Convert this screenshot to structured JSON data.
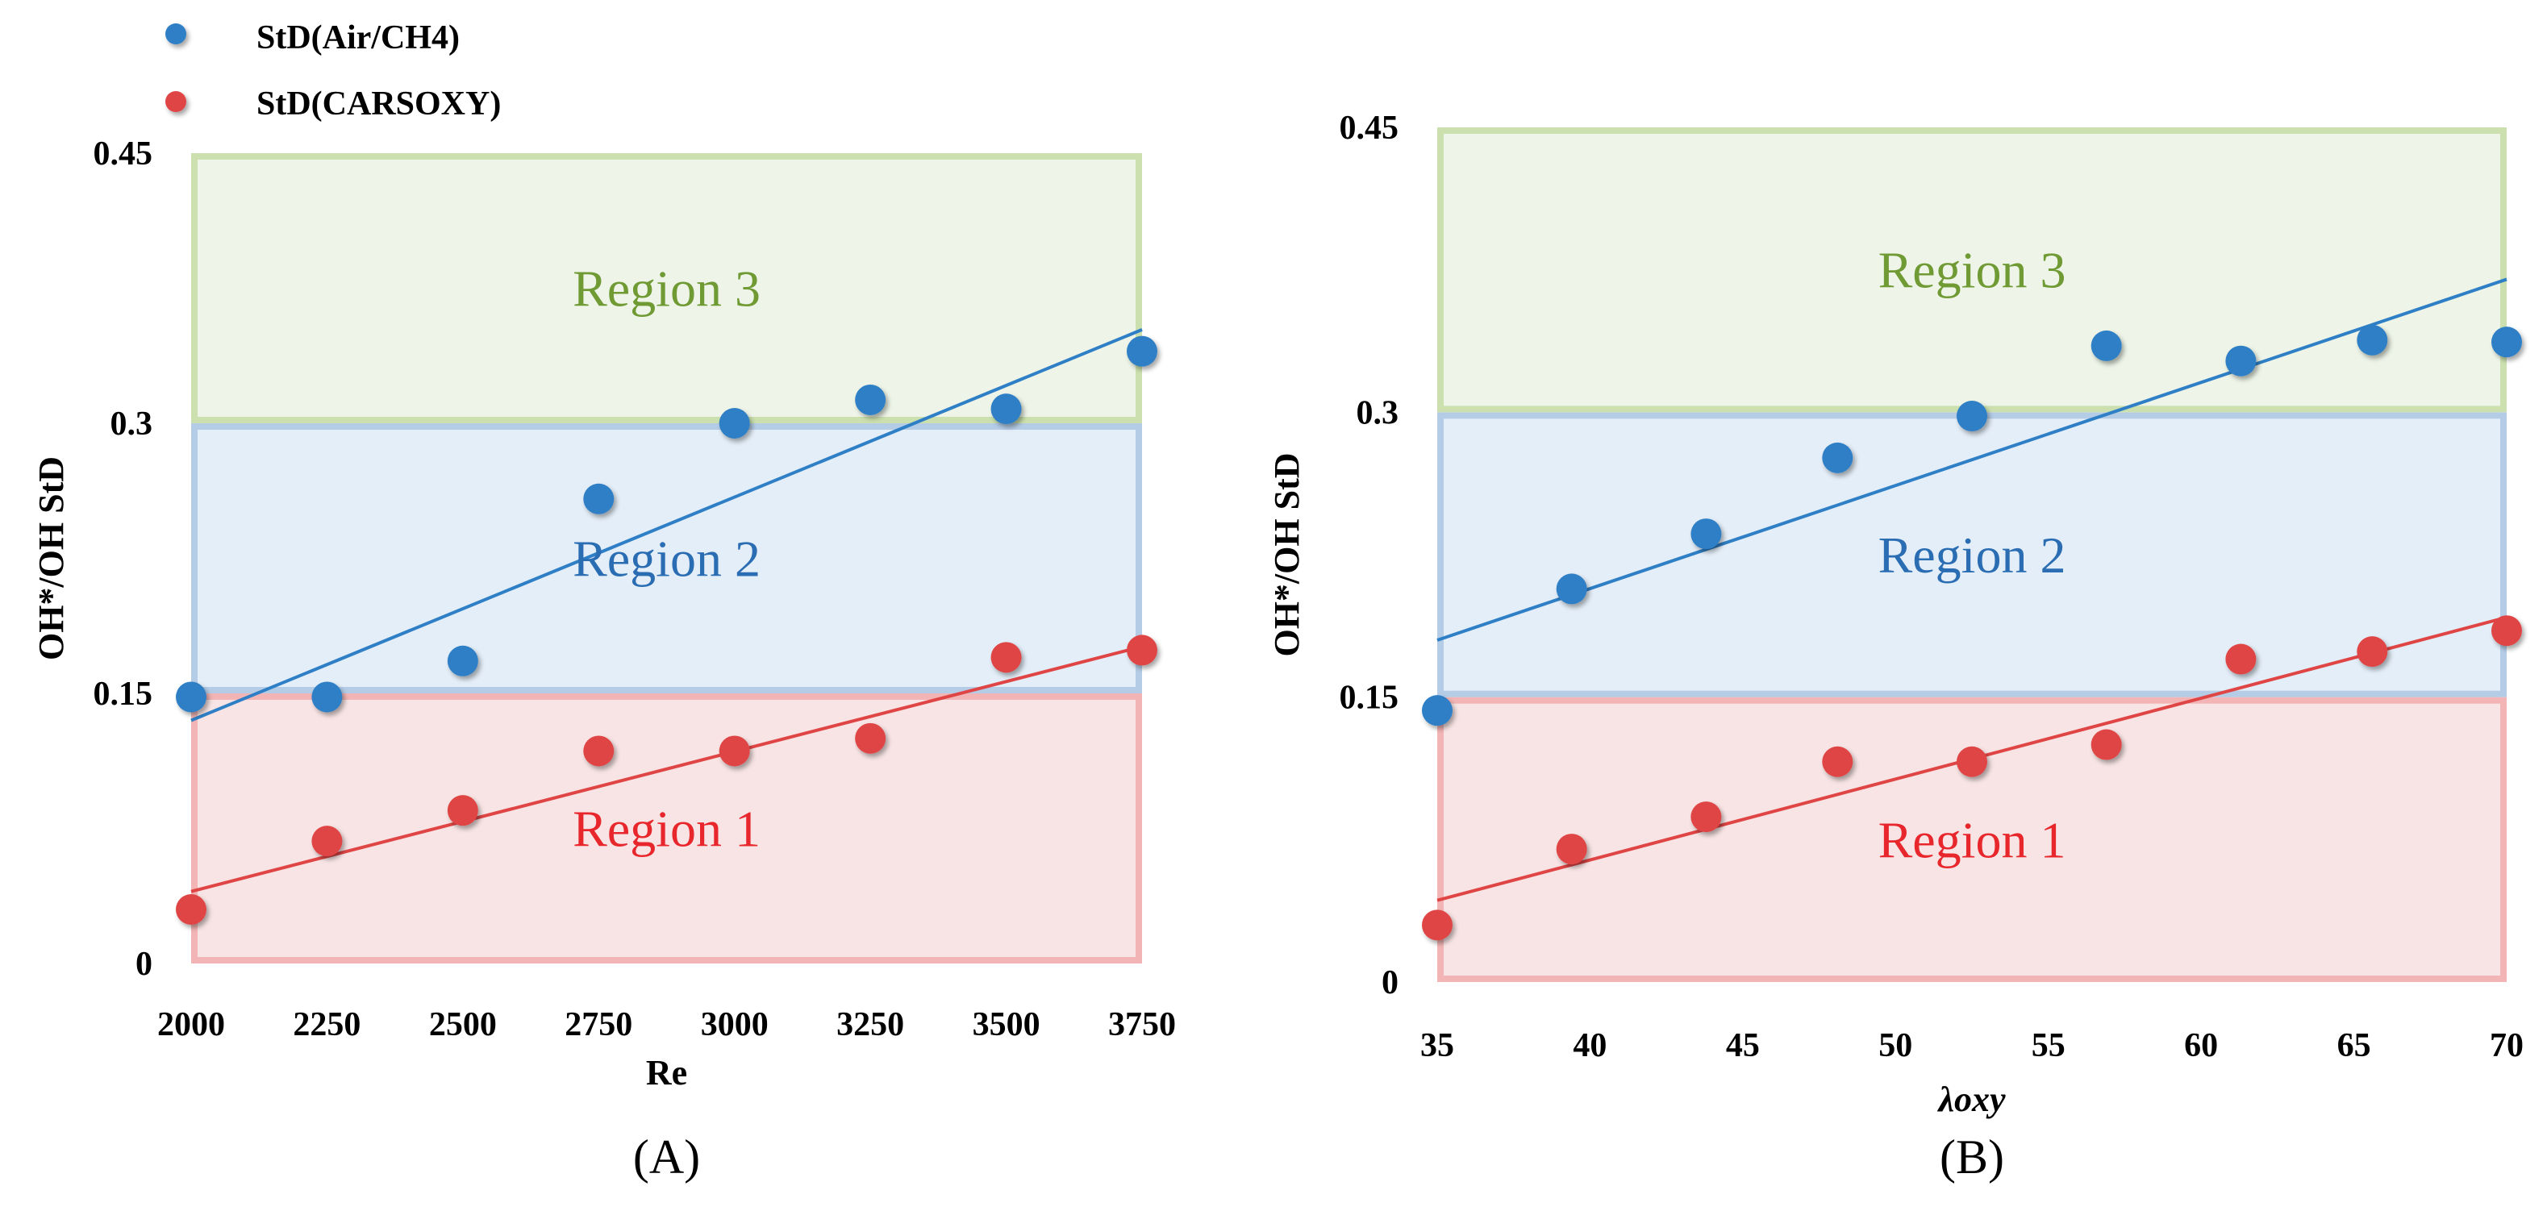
{
  "legend": [
    {
      "label": "StD(Air/CH4)",
      "color": "#2e7fc6"
    },
    {
      "label": "StD(CARSOXY)",
      "color": "#e04545"
    }
  ],
  "colors": {
    "series_blue": "#2e7fc6",
    "series_red": "#e04545",
    "region1_fill": "#f8e4e4",
    "region1_border": "#f2b4b4",
    "region1_text": "#e8272d",
    "region2_fill": "#e4eef8",
    "region2_border": "#b4cce6",
    "region2_text": "#2a6db3",
    "region3_fill": "#eef5e8",
    "region3_border": "#cbe0ae",
    "region3_text": "#6f9a34"
  },
  "chart_data": [
    {
      "panel": "A",
      "caption": "(A)",
      "type": "scatter",
      "xlabel": "Re",
      "ylabel": "OH*/OH StD",
      "xlim": [
        2000,
        3750
      ],
      "ylim": [
        0,
        0.45
      ],
      "x_ticks": [
        2000,
        2250,
        2500,
        2750,
        3000,
        3250,
        3500,
        3750
      ],
      "x_tick_labels": [
        "2000",
        "2250",
        "2500",
        "2750",
        "3000",
        "3250",
        "3500",
        "3750"
      ],
      "y_ticks": [
        0,
        0.15,
        0.3,
        0.45
      ],
      "y_tick_labels": [
        "0",
        "0.15",
        "0.3",
        "0.45"
      ],
      "regions": [
        {
          "label": "Region 1",
          "y0": 0,
          "y1": 0.15,
          "key": "region1"
        },
        {
          "label": "Region 2",
          "y0": 0.15,
          "y1": 0.3,
          "key": "region2"
        },
        {
          "label": "Region 3",
          "y0": 0.3,
          "y1": 0.45,
          "key": "region3"
        }
      ],
      "series": [
        {
          "name": "StD(Air/CH4)",
          "key": "blue",
          "x": [
            2000,
            2250,
            2500,
            2750,
            3000,
            3250,
            3500,
            3750
          ],
          "y": [
            0.148,
            0.148,
            0.168,
            0.258,
            0.3,
            0.313,
            0.308,
            0.34
          ],
          "trend": [
            0.135,
            0.352
          ]
        },
        {
          "name": "StD(CARSOXY)",
          "key": "red",
          "x": [
            2000,
            2250,
            2500,
            2750,
            3000,
            3250,
            3500,
            3750
          ],
          "y": [
            0.03,
            0.068,
            0.085,
            0.118,
            0.118,
            0.125,
            0.17,
            0.174
          ],
          "trend": [
            0.04,
            0.176
          ]
        }
      ]
    },
    {
      "panel": "B",
      "caption": "(B)",
      "type": "scatter",
      "xlabel": "λoxy",
      "ylabel": "OH*/OH StD",
      "xlim": [
        35,
        70
      ],
      "ylim": [
        0,
        0.45
      ],
      "x_ticks": [
        35,
        40,
        45,
        50,
        55,
        60,
        65,
        70
      ],
      "x_tick_labels": [
        "35",
        "40",
        "45",
        "50",
        "55",
        "60",
        "65",
        "70"
      ],
      "y_ticks": [
        0,
        0.15,
        0.3,
        0.45
      ],
      "y_tick_labels": [
        "0",
        "0.15",
        "0.3",
        "0.45"
      ],
      "regions": [
        {
          "label": "Region 1",
          "y0": 0,
          "y1": 0.15,
          "key": "region1"
        },
        {
          "label": "Region 2",
          "y0": 0.15,
          "y1": 0.3,
          "key": "region2"
        },
        {
          "label": "Region 3",
          "y0": 0.3,
          "y1": 0.45,
          "key": "region3"
        }
      ],
      "series": [
        {
          "name": "StD(Air/CH4)",
          "key": "blue",
          "x": [
            35,
            39.4,
            43.8,
            48.1,
            52.5,
            56.9,
            61.3,
            65.6,
            70
          ],
          "y": [
            0.143,
            0.207,
            0.236,
            0.276,
            0.298,
            0.335,
            0.327,
            0.338,
            0.337
          ],
          "trend": [
            0.18,
            0.37
          ]
        },
        {
          "name": "StD(CARSOXY)",
          "key": "red",
          "x": [
            35,
            39.4,
            43.8,
            48.1,
            52.5,
            56.9,
            61.3,
            65.6,
            70
          ],
          "y": [
            0.03,
            0.07,
            0.087,
            0.116,
            0.116,
            0.125,
            0.17,
            0.174,
            0.185
          ],
          "trend": [
            0.043,
            0.192
          ]
        }
      ]
    }
  ]
}
